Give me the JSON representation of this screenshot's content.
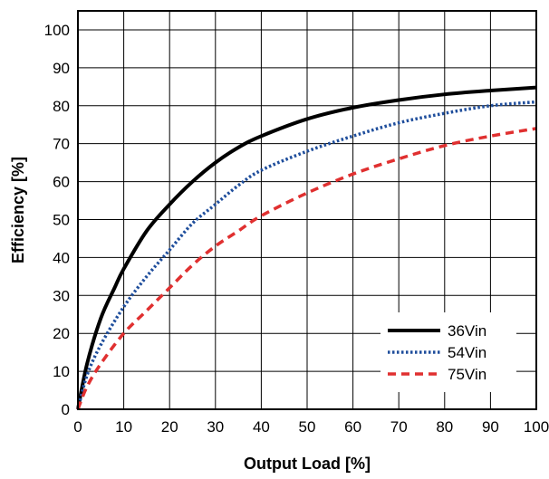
{
  "chart_data": {
    "type": "line",
    "title": "",
    "xlabel": "Output Load [%]",
    "ylabel": "Efficiency [%]",
    "xlim": [
      0,
      100
    ],
    "ylim": [
      0,
      105
    ],
    "xticks": [
      0,
      10,
      20,
      30,
      40,
      50,
      60,
      70,
      80,
      90,
      100
    ],
    "yticks": [
      0,
      10,
      20,
      30,
      40,
      50,
      60,
      70,
      80,
      90,
      100
    ],
    "grid": true,
    "legend_position": "bottom-right",
    "series": [
      {
        "name": "36Vin",
        "color": "#000000",
        "style": "solid",
        "x": [
          0,
          2,
          5,
          8,
          10,
          15,
          20,
          25,
          30,
          35,
          40,
          50,
          60,
          70,
          80,
          90,
          100
        ],
        "y": [
          0,
          12,
          24,
          32,
          37,
          47,
          54,
          60,
          65,
          69,
          72,
          76.5,
          79.5,
          81.5,
          83,
          84,
          84.8
        ]
      },
      {
        "name": "54Vin",
        "color": "#1f4e9c",
        "style": "dotted",
        "x": [
          0,
          2,
          5,
          10,
          15,
          20,
          25,
          30,
          35,
          40,
          50,
          60,
          70,
          80,
          90,
          100
        ],
        "y": [
          0,
          9,
          17,
          27,
          35,
          42,
          49,
          54,
          59,
          63,
          68,
          72,
          75.5,
          78,
          80,
          81
        ]
      },
      {
        "name": "75Vin",
        "color": "#e03030",
        "style": "dashed",
        "x": [
          0,
          2,
          5,
          10,
          15,
          20,
          25,
          30,
          35,
          40,
          50,
          60,
          70,
          80,
          90,
          100
        ],
        "y": [
          0,
          6,
          12,
          20,
          26,
          32,
          38,
          43,
          47,
          51,
          57,
          62,
          66,
          69.5,
          72,
          74
        ]
      }
    ]
  }
}
